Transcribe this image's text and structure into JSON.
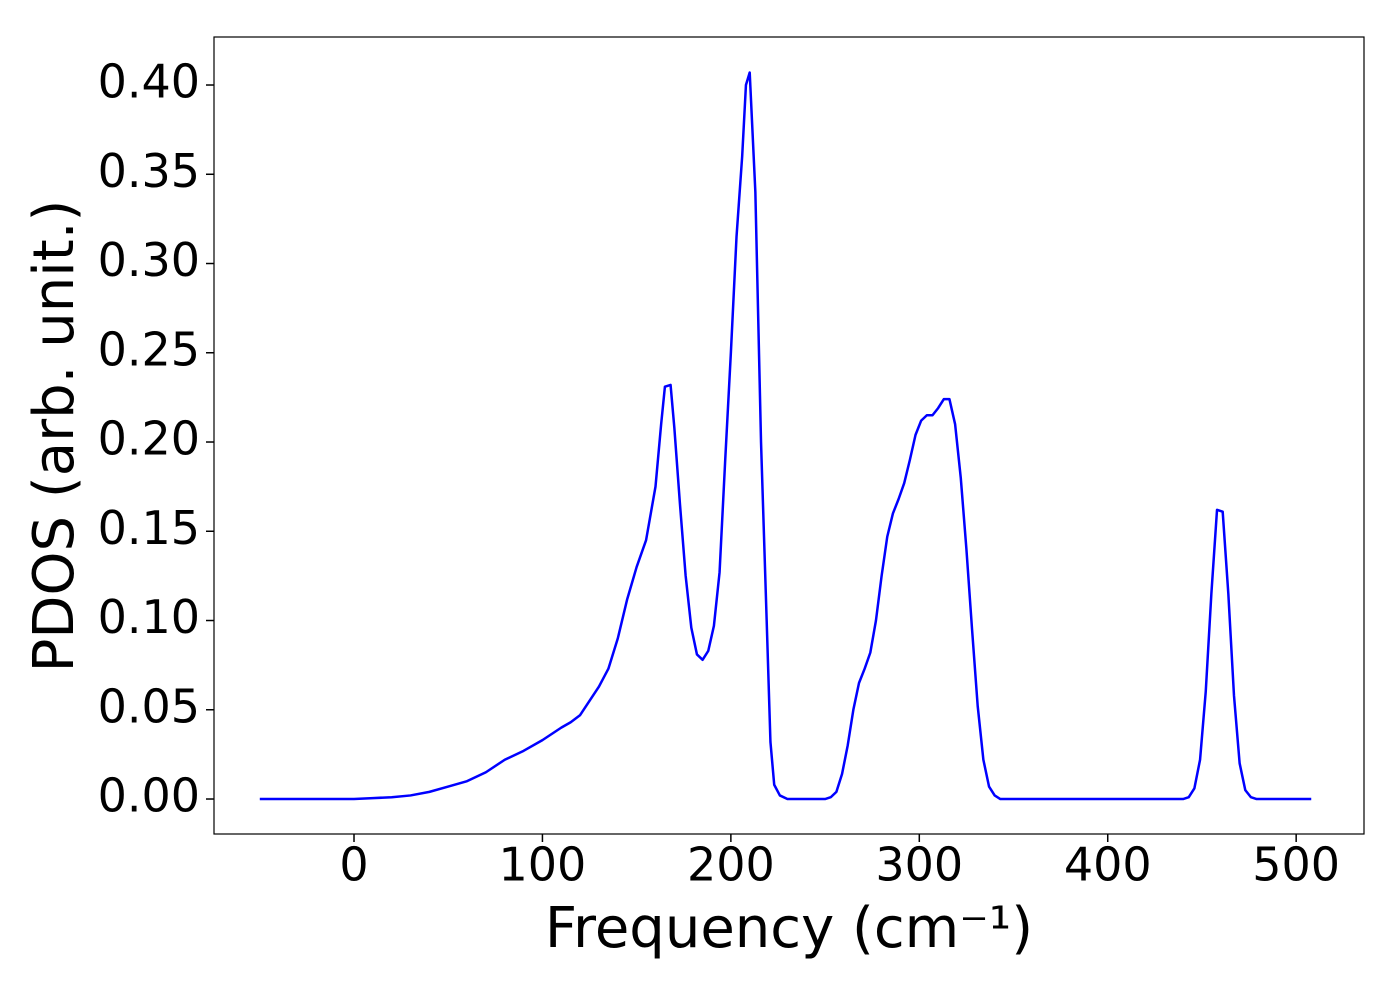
{
  "chart_data": {
    "type": "line",
    "xlabel": "Frequency (cm⁻¹)",
    "ylabel": "PDOS (arb. unit.)",
    "x": [
      -50,
      0,
      10,
      20,
      30,
      40,
      50,
      60,
      70,
      80,
      90,
      100,
      110,
      115,
      120,
      125,
      130,
      135,
      140,
      145,
      150,
      155,
      160,
      163,
      165,
      168,
      170,
      173,
      176,
      179,
      182,
      185,
      188,
      191,
      194,
      197,
      200,
      203,
      206,
      208,
      210,
      213,
      216,
      219,
      221,
      223,
      226,
      230,
      250,
      253,
      256,
      259,
      262,
      265,
      268,
      271,
      274,
      277,
      280,
      283,
      286,
      289,
      292,
      295,
      298,
      301,
      304,
      307,
      310,
      313,
      316,
      319,
      322,
      325,
      328,
      331,
      334,
      337,
      340,
      343,
      440,
      443,
      446,
      449,
      452,
      455,
      458,
      461,
      464,
      467,
      470,
      473,
      476,
      479,
      508
    ],
    "values": [
      0,
      0,
      0.0005,
      0.001,
      0.002,
      0.004,
      0.007,
      0.01,
      0.015,
      0.022,
      0.027,
      0.033,
      0.04,
      0.043,
      0.047,
      0.055,
      0.063,
      0.073,
      0.09,
      0.112,
      0.13,
      0.145,
      0.175,
      0.21,
      0.231,
      0.232,
      0.208,
      0.165,
      0.125,
      0.096,
      0.081,
      0.078,
      0.083,
      0.097,
      0.127,
      0.19,
      0.25,
      0.315,
      0.36,
      0.4,
      0.407,
      0.34,
      0.2,
      0.1,
      0.032,
      0.008,
      0.002,
      0,
      0,
      0.001,
      0.004,
      0.014,
      0.03,
      0.05,
      0.065,
      0.073,
      0.082,
      0.1,
      0.125,
      0.147,
      0.16,
      0.168,
      0.177,
      0.19,
      0.204,
      0.212,
      0.215,
      0.215,
      0.219,
      0.224,
      0.224,
      0.21,
      0.18,
      0.14,
      0.095,
      0.052,
      0.022,
      0.007,
      0.002,
      0,
      0,
      0.001,
      0.006,
      0.022,
      0.06,
      0.115,
      0.162,
      0.161,
      0.115,
      0.058,
      0.02,
      0.005,
      0.001,
      0,
      0
    ],
    "color": "#0000ff",
    "xlim": [
      -74.3,
      536
    ],
    "ylim": [
      -0.0196,
      0.4269
    ],
    "xticks": [
      0,
      100,
      200,
      300,
      400,
      500
    ],
    "yticks": [
      {
        "value": 0,
        "label": "0.00"
      },
      {
        "value": 0.05,
        "label": "0.05"
      },
      {
        "value": 0.1,
        "label": "0.10"
      },
      {
        "value": 0.15,
        "label": "0.15"
      },
      {
        "value": 0.2,
        "label": "0.20"
      },
      {
        "value": 0.25,
        "label": "0.25"
      },
      {
        "value": 0.3,
        "label": "0.30"
      },
      {
        "value": 0.35,
        "label": "0.35"
      },
      {
        "value": 0.4,
        "label": "0.40"
      }
    ],
    "grid": false
  }
}
